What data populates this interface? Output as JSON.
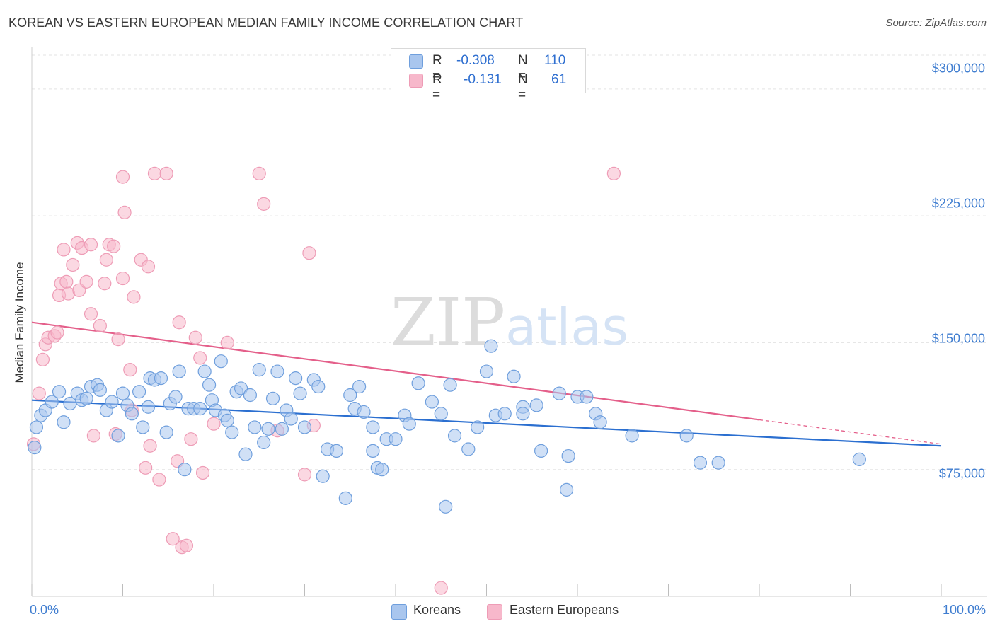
{
  "title": "KOREAN VS EASTERN EUROPEAN MEDIAN FAMILY INCOME CORRELATION CHART",
  "source": "Source: ZipAtlas.com",
  "watermark": "ZIPatlas",
  "colors": {
    "blue_fill": "#a9c6ee",
    "blue_stroke": "#6f9fdd",
    "blue_line": "#2b6fd0",
    "pink_fill": "#f7b8cb",
    "pink_stroke": "#ee9cb6",
    "pink_line": "#e45f8a",
    "tick_text": "#3f7dd0",
    "grid": "#e3e3e3"
  },
  "stats": {
    "blue": {
      "r_label": "R =",
      "r_value": "-0.308",
      "n_label": "N =",
      "n_value": "110"
    },
    "pink": {
      "r_label": "R =",
      "r_value": "-0.131",
      "n_label": "N =",
      "n_value": "61"
    }
  },
  "legend": {
    "blue": "Koreans",
    "pink": "Eastern Europeans"
  },
  "chart_data": {
    "type": "scatter",
    "title": "KOREAN VS EASTERN EUROPEAN MEDIAN FAMILY INCOME CORRELATION CHART",
    "xlabel": "",
    "ylabel": "Median Family Income",
    "xlim": [
      0,
      100
    ],
    "ylim": [
      0,
      320000
    ],
    "x_tick_labels": [
      "0.0%",
      "100.0%"
    ],
    "y_ticks": [
      75000,
      150000,
      225000,
      300000
    ],
    "y_tick_labels": [
      "$75,000",
      "$150,000",
      "$225,000",
      "$300,000"
    ],
    "series": [
      {
        "name": "Koreans",
        "color": "#a9c6ee",
        "trend": {
          "x": [
            0,
            100
          ],
          "y": [
            116000,
            89000
          ],
          "dashed_from": null
        },
        "points": [
          [
            0.3,
            88000
          ],
          [
            0.5,
            100000
          ],
          [
            1.0,
            107000
          ],
          [
            1.5,
            110000
          ],
          [
            2.2,
            115000
          ],
          [
            3.0,
            121000
          ],
          [
            3.5,
            103000
          ],
          [
            4.2,
            114000
          ],
          [
            5.0,
            120000
          ],
          [
            5.5,
            116000
          ],
          [
            6.0,
            117000
          ],
          [
            6.5,
            124000
          ],
          [
            7.2,
            125000
          ],
          [
            7.5,
            122000
          ],
          [
            8.2,
            110000
          ],
          [
            8.8,
            115000
          ],
          [
            9.5,
            95000
          ],
          [
            10.0,
            120000
          ],
          [
            10.5,
            113000
          ],
          [
            11.0,
            108000
          ],
          [
            11.8,
            121000
          ],
          [
            12.2,
            100000
          ],
          [
            12.8,
            112000
          ],
          [
            13.0,
            129000
          ],
          [
            13.5,
            128000
          ],
          [
            14.2,
            129000
          ],
          [
            14.8,
            97000
          ],
          [
            15.2,
            114000
          ],
          [
            15.8,
            118000
          ],
          [
            16.2,
            133000
          ],
          [
            16.8,
            75000
          ],
          [
            17.2,
            111000
          ],
          [
            17.8,
            111000
          ],
          [
            18.5,
            111000
          ],
          [
            19.0,
            133000
          ],
          [
            19.5,
            125000
          ],
          [
            19.8,
            116000
          ],
          [
            20.2,
            110000
          ],
          [
            20.8,
            139000
          ],
          [
            21.2,
            107000
          ],
          [
            21.5,
            104000
          ],
          [
            22.0,
            97000
          ],
          [
            22.5,
            121000
          ],
          [
            23.0,
            123000
          ],
          [
            23.5,
            84000
          ],
          [
            24.0,
            119000
          ],
          [
            24.5,
            100000
          ],
          [
            25.0,
            134000
          ],
          [
            25.5,
            91000
          ],
          [
            26.0,
            99000
          ],
          [
            26.5,
            117000
          ],
          [
            27.0,
            133000
          ],
          [
            27.5,
            99000
          ],
          [
            28.0,
            110000
          ],
          [
            28.5,
            105000
          ],
          [
            29.0,
            129000
          ],
          [
            29.5,
            120000
          ],
          [
            30.0,
            100000
          ],
          [
            31.0,
            128000
          ],
          [
            31.5,
            124000
          ],
          [
            32.0,
            71000
          ],
          [
            32.5,
            87000
          ],
          [
            33.5,
            86000
          ],
          [
            34.5,
            58000
          ],
          [
            35.0,
            119000
          ],
          [
            35.5,
            111000
          ],
          [
            36.0,
            124000
          ],
          [
            36.5,
            109000
          ],
          [
            37.5,
            100000
          ],
          [
            37.5,
            86000
          ],
          [
            38.0,
            76000
          ],
          [
            38.5,
            75000
          ],
          [
            39.0,
            93000
          ],
          [
            40.0,
            93000
          ],
          [
            41.0,
            107000
          ],
          [
            41.5,
            102000
          ],
          [
            42.5,
            126000
          ],
          [
            44.0,
            115000
          ],
          [
            45.0,
            108000
          ],
          [
            45.5,
            53000
          ],
          [
            46.0,
            125000
          ],
          [
            46.5,
            95000
          ],
          [
            48.0,
            87000
          ],
          [
            49.0,
            100000
          ],
          [
            50.0,
            133000
          ],
          [
            50.5,
            148000
          ],
          [
            51.0,
            107000
          ],
          [
            52.0,
            108000
          ],
          [
            53.0,
            130000
          ],
          [
            54.0,
            112000
          ],
          [
            54.0,
            108000
          ],
          [
            55.5,
            113000
          ],
          [
            56.0,
            86000
          ],
          [
            58.0,
            120000
          ],
          [
            58.8,
            63000
          ],
          [
            59.0,
            83000
          ],
          [
            60.0,
            118000
          ],
          [
            61.0,
            118000
          ],
          [
            62.0,
            108000
          ],
          [
            62.5,
            103000
          ],
          [
            66.0,
            95000
          ],
          [
            72.0,
            95000
          ],
          [
            73.5,
            79000
          ],
          [
            75.5,
            79000
          ],
          [
            91.0,
            81000
          ]
        ]
      },
      {
        "name": "Eastern Europeans",
        "color": "#f7b8cb",
        "trend": {
          "x": [
            0,
            100
          ],
          "y": [
            162000,
            90000
          ],
          "dashed_from": 80
        },
        "points": [
          [
            0.2,
            90000
          ],
          [
            0.8,
            120000
          ],
          [
            1.2,
            140000
          ],
          [
            1.5,
            149000
          ],
          [
            1.8,
            153000
          ],
          [
            2.5,
            154000
          ],
          [
            2.8,
            156000
          ],
          [
            3.0,
            178000
          ],
          [
            3.2,
            185000
          ],
          [
            3.5,
            205000
          ],
          [
            3.8,
            186000
          ],
          [
            4.0,
            179000
          ],
          [
            4.5,
            196000
          ],
          [
            5.0,
            209000
          ],
          [
            5.2,
            181000
          ],
          [
            5.5,
            206000
          ],
          [
            6.0,
            186000
          ],
          [
            6.5,
            208000
          ],
          [
            6.5,
            167000
          ],
          [
            6.8,
            95000
          ],
          [
            7.5,
            160000
          ],
          [
            8.0,
            185000
          ],
          [
            8.2,
            199000
          ],
          [
            8.5,
            208000
          ],
          [
            9.0,
            207000
          ],
          [
            9.2,
            96000
          ],
          [
            9.5,
            152000
          ],
          [
            10.0,
            188000
          ],
          [
            10.0,
            248000
          ],
          [
            10.2,
            227000
          ],
          [
            10.8,
            134000
          ],
          [
            11.0,
            110000
          ],
          [
            11.2,
            177000
          ],
          [
            12.0,
            199000
          ],
          [
            12.5,
            76000
          ],
          [
            12.8,
            195000
          ],
          [
            13.0,
            89000
          ],
          [
            13.5,
            250000
          ],
          [
            14.0,
            69000
          ],
          [
            14.8,
            250000
          ],
          [
            15.5,
            34000
          ],
          [
            16.0,
            80000
          ],
          [
            16.2,
            162000
          ],
          [
            16.5,
            29000
          ],
          [
            17.0,
            30000
          ],
          [
            17.5,
            93000
          ],
          [
            18.0,
            153000
          ],
          [
            18.5,
            141000
          ],
          [
            18.8,
            73000
          ],
          [
            20.0,
            102000
          ],
          [
            21.5,
            150000
          ],
          [
            25.0,
            250000
          ],
          [
            25.5,
            232000
          ],
          [
            27.0,
            98000
          ],
          [
            30.0,
            72000
          ],
          [
            30.5,
            203000
          ],
          [
            31.0,
            101000
          ],
          [
            45.0,
            5000
          ],
          [
            64.0,
            250000
          ]
        ]
      }
    ]
  }
}
